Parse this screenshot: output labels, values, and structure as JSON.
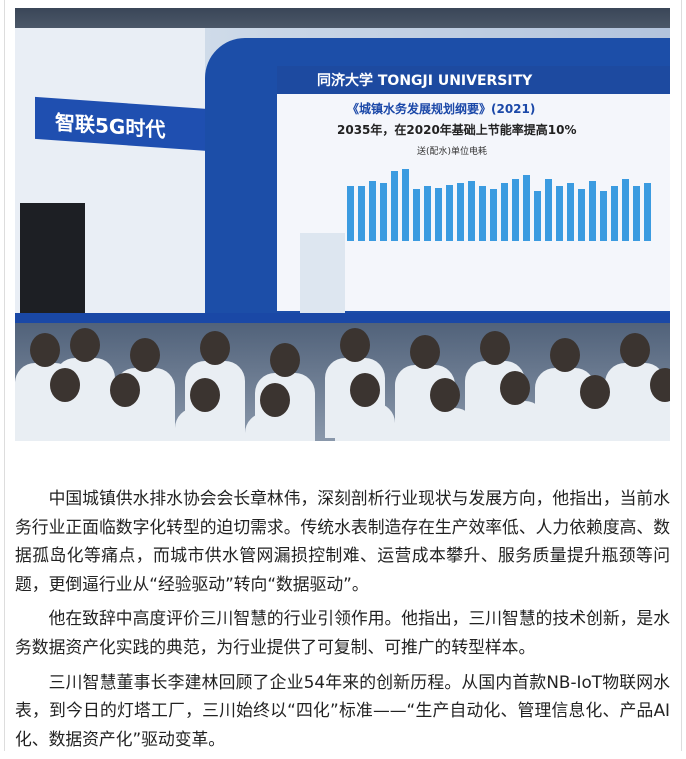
{
  "photo": {
    "banner_text": "智联5G时代",
    "slide": {
      "university": "同济大学 TONGJI UNIVERSITY",
      "title": "《城镇水务发展规划纲要》(2021)",
      "subtitle": "2035年，在2020年基础上节能率提高10%",
      "chart_label": "送(配水)单位电耗"
    }
  },
  "article": {
    "paragraphs": [
      "中国城镇供水排水协会会长章林伟，深刻剖析行业现状与发展方向，他指出，当前水务行业正面临数字化转型的迫切需求。传统水表制造存在生产效率低、人力依赖度高、数据孤岛化等痛点，而城市供水管网漏损控制难、运营成本攀升、服务质量提升瓶颈等问题，更倒逼行业从“经验驱动”转向“数据驱动”。",
      "他在致辞中高度评价三川智慧的行业引领作用。他指出，三川智慧的技术创新，是水务数据资产化实践的典范，为行业提供了可复制、可推广的转型样本。",
      "三川智慧董事长李建林回顾了企业54年来的创新历程。从国内首款NB-IoT物联网水表，到今日的灯塔工厂，三川始终以“四化”标准——“生产自动化、管理信息化、产品AI化、数据资产化”驱动变革。"
    ]
  }
}
